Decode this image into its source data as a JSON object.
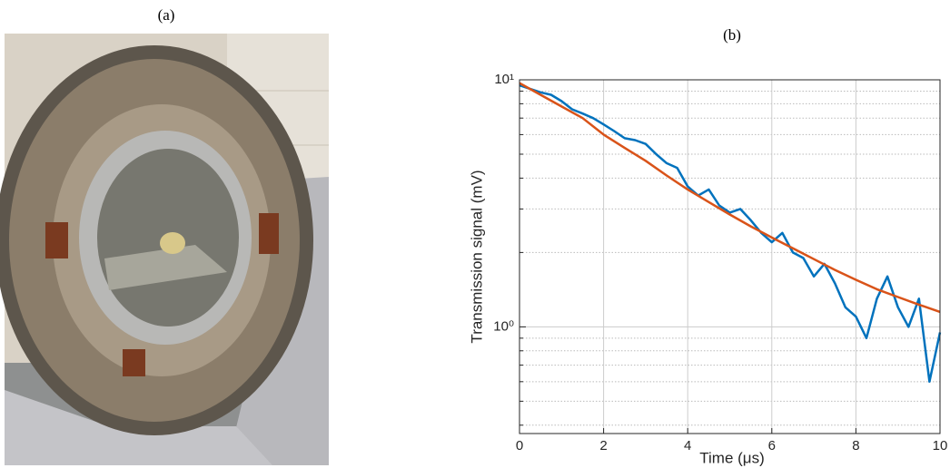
{
  "photo": {
    "label": "(a)"
  },
  "chart_data": {
    "type": "line",
    "panel_label": "(b)",
    "x_label": "Time (μs)",
    "y_label": "Transmission signal (mV)",
    "xlim": [
      0,
      10
    ],
    "xticks": [
      0,
      2,
      4,
      6,
      8,
      10
    ],
    "ylim": [
      0.37,
      10
    ],
    "log_y": true,
    "yticks": [
      {
        "value": 1,
        "label": "10⁰"
      },
      {
        "value": 10,
        "label": "10¹"
      }
    ],
    "yminor": [
      0.4,
      0.5,
      0.6,
      0.7,
      0.8,
      0.9,
      2,
      3,
      4,
      5,
      6,
      7,
      8,
      9
    ],
    "grid": true,
    "series": [
      {
        "color": "#0072bd",
        "x": [
          0,
          0.25,
          0.5,
          0.75,
          1,
          1.25,
          1.5,
          1.75,
          2,
          2.25,
          2.5,
          2.75,
          3,
          3.25,
          3.5,
          3.75,
          4,
          4.25,
          4.5,
          4.75,
          5,
          5.25,
          5.5,
          5.75,
          6,
          6.25,
          6.5,
          6.75,
          7,
          7.25,
          7.5,
          7.75,
          8,
          8.25,
          8.5,
          8.75,
          9,
          9.25,
          9.5,
          9.75,
          10
        ],
        "values": [
          9.5,
          9.2,
          8.9,
          8.7,
          8.2,
          7.6,
          7.3,
          7.0,
          6.6,
          6.2,
          5.8,
          5.7,
          5.5,
          5.0,
          4.6,
          4.4,
          3.7,
          3.4,
          3.6,
          3.1,
          2.9,
          3.0,
          2.7,
          2.4,
          2.2,
          2.4,
          2.0,
          1.9,
          1.6,
          1.8,
          1.5,
          1.2,
          1.1,
          0.9,
          1.3,
          1.6,
          1.2,
          1.0,
          1.3,
          0.6,
          0.95
        ]
      },
      {
        "color": "#d95319",
        "x": [
          0,
          0.5,
          1,
          1.5,
          2,
          2.5,
          3,
          3.5,
          4,
          4.5,
          5,
          5.5,
          6,
          6.5,
          7,
          7.5,
          8,
          8.5,
          9,
          9.5,
          10
        ],
        "values": [
          9.7,
          8.7,
          7.8,
          7.0,
          6.0,
          5.3,
          4.7,
          4.1,
          3.6,
          3.2,
          2.85,
          2.55,
          2.3,
          2.08,
          1.88,
          1.7,
          1.55,
          1.42,
          1.32,
          1.23,
          1.15
        ]
      }
    ]
  }
}
